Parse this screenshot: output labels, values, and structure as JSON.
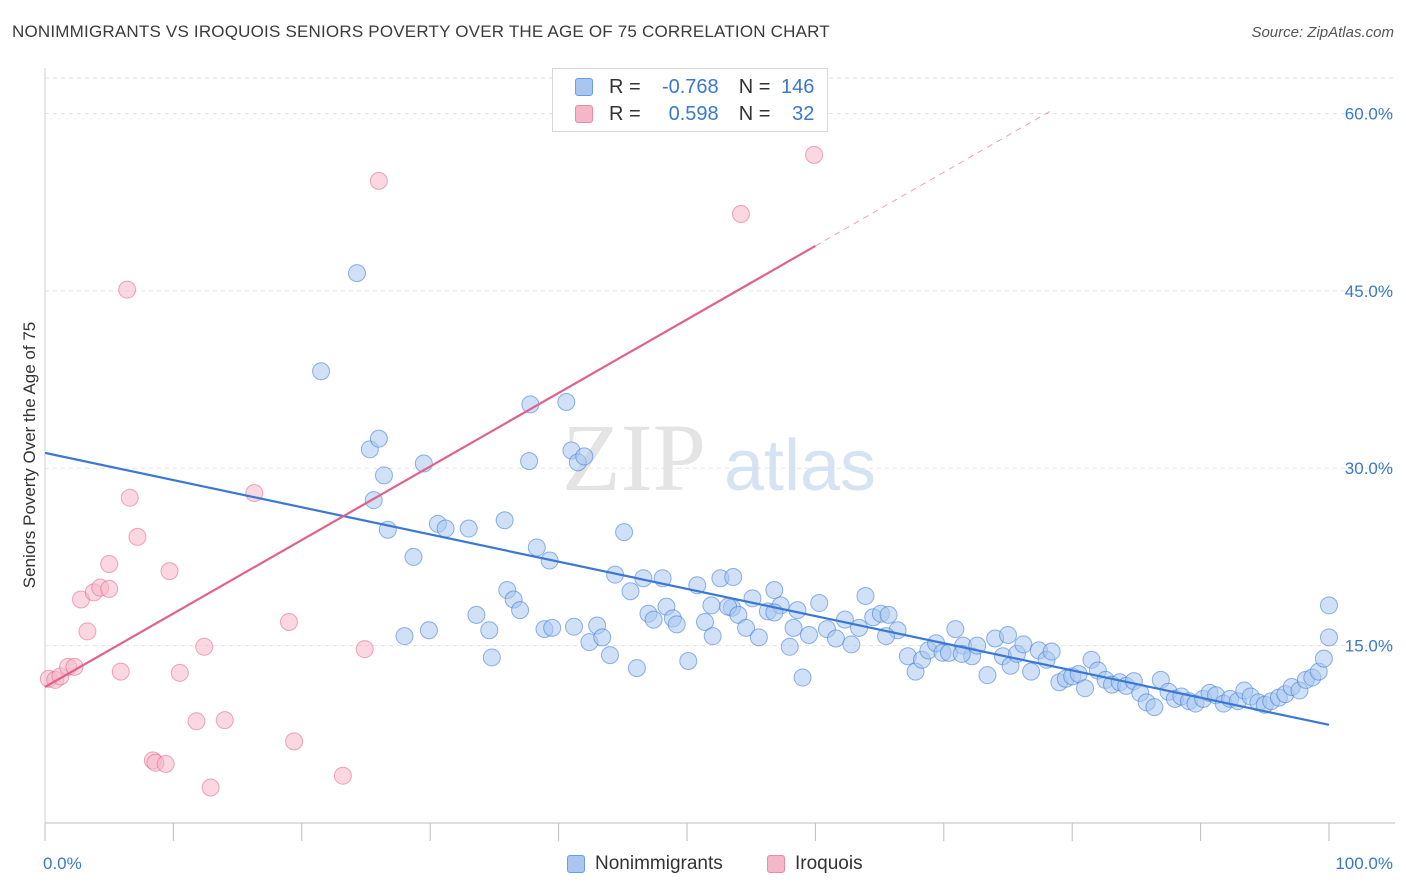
{
  "title": "NONIMMIGRANTS VS IROQUOIS SENIORS POVERTY OVER THE AGE OF 75 CORRELATION CHART",
  "source": "Source: ZipAtlas.com",
  "watermark": {
    "zip": "ZIP",
    "atlas": "atlas"
  },
  "legend": {
    "series": [
      {
        "swatch_color": "#a8c6f0",
        "r_label": "R =",
        "r_value": "-0.768",
        "n_label": "N =",
        "n_value": "146"
      },
      {
        "swatch_color": "#f5b6c8",
        "r_label": "R =",
        "r_value": "0.598",
        "n_label": "N =",
        "n_value": "32"
      }
    ]
  },
  "bottom_legend": [
    {
      "label": "Nonimmigrants",
      "color": "#a8c6f0"
    },
    {
      "label": "Iroquois",
      "color": "#f5b6c8"
    }
  ],
  "chart_data": {
    "type": "scatter",
    "title": "NONIMMIGRANTS VS IROQUOIS SENIORS POVERTY OVER THE AGE OF 75 CORRELATION CHART",
    "xlabel": "",
    "ylabel": "Seniors Poverty Over the Age of 75",
    "xlim": [
      0,
      100
    ],
    "ylim": [
      0,
      63
    ],
    "x_tick_labels": [
      {
        "value": 0,
        "label": "0.0%"
      },
      {
        "value": 100,
        "label": "100.0%"
      }
    ],
    "y_tick_labels": [
      {
        "value": 15,
        "label": "15.0%"
      },
      {
        "value": 30,
        "label": "30.0%"
      },
      {
        "value": 45,
        "label": "45.0%"
      },
      {
        "value": 60,
        "label": "60.0%"
      }
    ],
    "grid": true,
    "series": [
      {
        "name": "Nonimmigrants",
        "color": "#3a78d4",
        "fill": "#a8c6f0",
        "trend": {
          "x": [
            0,
            100
          ],
          "y": [
            31.3,
            8.3
          ],
          "dashed_extension": false
        },
        "points": [
          [
            21.5,
            38.2
          ],
          [
            24.3,
            46.5
          ],
          [
            25.3,
            31.6
          ],
          [
            26.0,
            32.5
          ],
          [
            26.4,
            29.4
          ],
          [
            25.6,
            27.3
          ],
          [
            26.7,
            24.8
          ],
          [
            28.0,
            15.8
          ],
          [
            28.7,
            22.5
          ],
          [
            29.5,
            30.4
          ],
          [
            29.9,
            16.3
          ],
          [
            30.6,
            25.3
          ],
          [
            31.2,
            24.9
          ],
          [
            33.0,
            24.9
          ],
          [
            33.6,
            17.6
          ],
          [
            34.6,
            16.3
          ],
          [
            34.8,
            14.0
          ],
          [
            35.8,
            25.6
          ],
          [
            36.0,
            19.7
          ],
          [
            36.5,
            18.9
          ],
          [
            37.7,
            30.6
          ],
          [
            37.8,
            35.4
          ],
          [
            38.3,
            23.3
          ],
          [
            38.9,
            16.4
          ],
          [
            39.5,
            16.5
          ],
          [
            39.3,
            22.2
          ],
          [
            40.6,
            35.6
          ],
          [
            41.0,
            31.5
          ],
          [
            41.5,
            30.5
          ],
          [
            42.0,
            31.0
          ],
          [
            41.2,
            16.6
          ],
          [
            42.4,
            15.3
          ],
          [
            43.0,
            16.7
          ],
          [
            43.4,
            15.7
          ],
          [
            44.0,
            14.2
          ],
          [
            44.4,
            21.0
          ],
          [
            45.1,
            24.6
          ],
          [
            45.6,
            19.6
          ],
          [
            46.1,
            13.1
          ],
          [
            46.6,
            20.7
          ],
          [
            47.0,
            17.7
          ],
          [
            48.1,
            20.7
          ],
          [
            48.4,
            18.3
          ],
          [
            48.9,
            17.3
          ],
          [
            49.2,
            16.8
          ],
          [
            50.1,
            13.7
          ],
          [
            50.8,
            20.1
          ],
          [
            51.4,
            17.0
          ],
          [
            52.0,
            15.8
          ],
          [
            52.6,
            20.7
          ],
          [
            53.5,
            18.2
          ],
          [
            53.2,
            18.3
          ],
          [
            54.0,
            17.6
          ],
          [
            54.6,
            16.5
          ],
          [
            55.1,
            19.0
          ],
          [
            55.6,
            15.7
          ],
          [
            56.3,
            17.9
          ],
          [
            56.8,
            19.7
          ],
          [
            57.3,
            18.4
          ],
          [
            58.0,
            14.9
          ],
          [
            58.3,
            16.5
          ],
          [
            59.0,
            12.3
          ],
          [
            59.5,
            15.9
          ],
          [
            60.3,
            18.6
          ],
          [
            60.9,
            16.4
          ],
          [
            61.6,
            15.6
          ],
          [
            62.3,
            17.2
          ],
          [
            62.8,
            15.1
          ],
          [
            63.4,
            16.5
          ],
          [
            63.9,
            19.2
          ],
          [
            64.5,
            17.4
          ],
          [
            65.1,
            17.7
          ],
          [
            65.7,
            17.6
          ],
          [
            66.4,
            16.3
          ],
          [
            67.2,
            14.1
          ],
          [
            67.8,
            12.8
          ],
          [
            68.3,
            13.8
          ],
          [
            68.8,
            14.6
          ],
          [
            69.4,
            15.2
          ],
          [
            69.9,
            14.4
          ],
          [
            70.4,
            14.4
          ],
          [
            70.9,
            16.4
          ],
          [
            71.5,
            15.0
          ],
          [
            72.2,
            14.1
          ],
          [
            72.6,
            15.0
          ],
          [
            73.4,
            12.5
          ],
          [
            74.0,
            15.6
          ],
          [
            74.6,
            14.1
          ],
          [
            75.2,
            13.3
          ],
          [
            75.7,
            14.3
          ],
          [
            76.2,
            15.1
          ],
          [
            76.8,
            12.8
          ],
          [
            77.4,
            14.6
          ],
          [
            78.0,
            13.8
          ],
          [
            78.4,
            14.5
          ],
          [
            79.0,
            11.9
          ],
          [
            79.5,
            12.2
          ],
          [
            80.0,
            12.4
          ],
          [
            80.5,
            12.6
          ],
          [
            81.0,
            11.4
          ],
          [
            81.5,
            13.8
          ],
          [
            82.0,
            12.9
          ],
          [
            82.6,
            12.1
          ],
          [
            83.1,
            11.7
          ],
          [
            83.7,
            11.9
          ],
          [
            84.2,
            11.6
          ],
          [
            84.8,
            12.0
          ],
          [
            85.3,
            11.0
          ],
          [
            85.8,
            10.2
          ],
          [
            86.4,
            9.8
          ],
          [
            86.9,
            12.1
          ],
          [
            87.5,
            11.1
          ],
          [
            88.0,
            10.5
          ],
          [
            88.5,
            10.7
          ],
          [
            89.1,
            10.3
          ],
          [
            89.6,
            10.1
          ],
          [
            90.2,
            10.5
          ],
          [
            90.7,
            11.0
          ],
          [
            91.2,
            10.8
          ],
          [
            91.8,
            10.1
          ],
          [
            92.3,
            10.5
          ],
          [
            92.9,
            10.3
          ],
          [
            93.4,
            11.2
          ],
          [
            93.9,
            10.7
          ],
          [
            94.5,
            10.2
          ],
          [
            95.0,
            10.0
          ],
          [
            95.5,
            10.3
          ],
          [
            96.1,
            10.6
          ],
          [
            96.6,
            10.9
          ],
          [
            97.1,
            11.5
          ],
          [
            97.7,
            11.2
          ],
          [
            98.2,
            12.1
          ],
          [
            98.7,
            12.3
          ],
          [
            99.2,
            12.8
          ],
          [
            99.6,
            13.9
          ],
          [
            100.0,
            15.7
          ],
          [
            100.0,
            18.4
          ],
          [
            53.6,
            20.8
          ],
          [
            51.9,
            18.4
          ],
          [
            47.4,
            17.2
          ],
          [
            37.0,
            18.0
          ],
          [
            56.8,
            17.8
          ],
          [
            65.5,
            15.8
          ],
          [
            58.6,
            18.0
          ],
          [
            71.4,
            14.3
          ],
          [
            75.0,
            15.9
          ]
        ]
      },
      {
        "name": "Iroquois",
        "color": "#e0628c",
        "fill": "#f5b6c8",
        "trend": {
          "x": [
            0,
            60.0
          ],
          "y": [
            11.5,
            48.8
          ],
          "dashed_x": [
            60.0,
            78.3
          ],
          "dashed_y": [
            48.8,
            60.2
          ]
        },
        "points": [
          [
            0.3,
            12.2
          ],
          [
            0.8,
            12.1
          ],
          [
            1.2,
            12.4
          ],
          [
            1.8,
            13.2
          ],
          [
            2.3,
            13.2
          ],
          [
            2.8,
            18.9
          ],
          [
            3.3,
            16.2
          ],
          [
            3.8,
            19.5
          ],
          [
            4.3,
            19.9
          ],
          [
            5.0,
            19.8
          ],
          [
            5.0,
            21.9
          ],
          [
            5.9,
            12.8
          ],
          [
            6.4,
            45.1
          ],
          [
            6.6,
            27.5
          ],
          [
            7.2,
            24.2
          ],
          [
            8.4,
            5.3
          ],
          [
            8.6,
            5.1
          ],
          [
            9.4,
            5.0
          ],
          [
            9.7,
            21.3
          ],
          [
            10.5,
            12.7
          ],
          [
            11.8,
            8.6
          ],
          [
            12.4,
            14.9
          ],
          [
            12.9,
            3.0
          ],
          [
            14.0,
            8.7
          ],
          [
            16.3,
            27.9
          ],
          [
            19.0,
            17.0
          ],
          [
            19.4,
            6.9
          ],
          [
            23.2,
            4.0
          ],
          [
            24.9,
            14.7
          ],
          [
            26.0,
            54.3
          ],
          [
            54.2,
            51.5
          ],
          [
            59.9,
            56.5
          ]
        ]
      }
    ]
  }
}
